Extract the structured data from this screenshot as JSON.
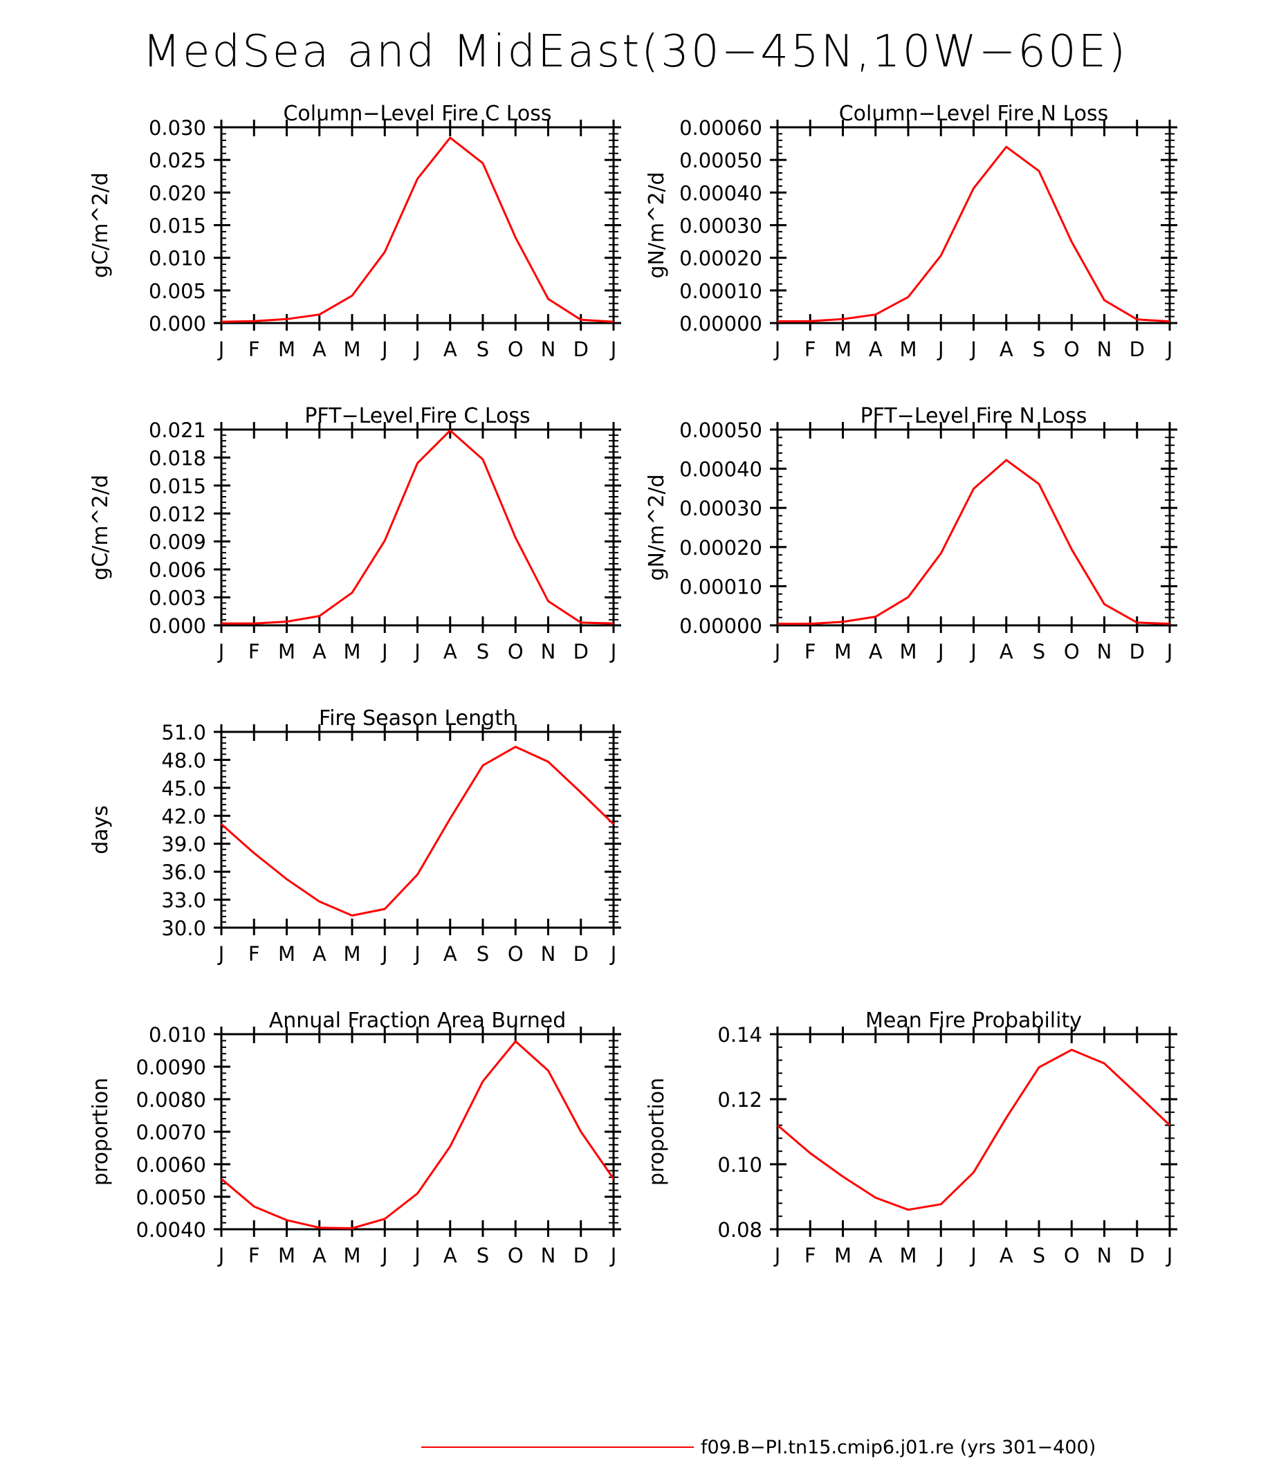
{
  "title": "MedSea and MidEast(30−45N,10W−60E)",
  "month_labels": [
    "J",
    "F",
    "M",
    "A",
    "M",
    "J",
    "J",
    "A",
    "S",
    "O",
    "N",
    "D",
    "J"
  ],
  "line_color": "#ff0000",
  "legend": {
    "label": "f09.B−PI.tn15.cmip6.j01.re (yrs 301−400)"
  },
  "chart_data": [
    {
      "type": "line",
      "title": "Column−Level Fire C Loss",
      "ylabel": "gC/m^2/d",
      "ylim": [
        0,
        0.03
      ],
      "yticks": [
        0.0,
        0.005,
        0.01,
        0.015,
        0.02,
        0.025,
        0.03
      ],
      "ytick_labels": [
        "0.000",
        "0.005",
        "0.010",
        "0.015",
        "0.020",
        "0.025",
        "0.030"
      ],
      "x": [
        "J",
        "F",
        "M",
        "A",
        "M",
        "J",
        "J",
        "A",
        "S",
        "O",
        "N",
        "D",
        "J"
      ],
      "series": [
        {
          "values": [
            0.0002,
            0.0003,
            0.0006,
            0.0013,
            0.0042,
            0.0109,
            0.0221,
            0.0284,
            0.0245,
            0.0131,
            0.0037,
            0.0005,
            0.0002
          ]
        }
      ]
    },
    {
      "type": "line",
      "title": "Column−Level Fire N Loss",
      "ylabel": "gN/m^2/d",
      "ylim": [
        0,
        0.0006
      ],
      "yticks": [
        0.0,
        0.0001,
        0.0002,
        0.0003,
        0.0004,
        0.0005,
        0.0006
      ],
      "ytick_labels": [
        "0.00000",
        "0.00010",
        "0.00020",
        "0.00030",
        "0.00040",
        "0.00050",
        "0.00060"
      ],
      "x": [
        "J",
        "F",
        "M",
        "A",
        "M",
        "J",
        "J",
        "A",
        "S",
        "O",
        "N",
        "D",
        "J"
      ],
      "series": [
        {
          "values": [
            5e-06,
            6e-06,
            1.2e-05,
            2.6e-05,
            8e-05,
            0.000207,
            0.000413,
            0.00054,
            0.000466,
            0.000249,
            7e-05,
            1.1e-05,
            5e-06
          ]
        }
      ]
    },
    {
      "type": "line",
      "title": "PFT−Level Fire C Loss",
      "ylabel": "gC/m^2/d",
      "ylim": [
        0,
        0.021
      ],
      "yticks": [
        0.0,
        0.003,
        0.006,
        0.009,
        0.012,
        0.015,
        0.018,
        0.021
      ],
      "ytick_labels": [
        "0.000",
        "0.003",
        "0.006",
        "0.009",
        "0.012",
        "0.015",
        "0.018",
        "0.021"
      ],
      "x": [
        "J",
        "F",
        "M",
        "A",
        "M",
        "J",
        "J",
        "A",
        "S",
        "O",
        "N",
        "D",
        "J"
      ],
      "series": [
        {
          "values": [
            0.0002,
            0.0002,
            0.0004,
            0.001,
            0.0035,
            0.0091,
            0.0174,
            0.0209,
            0.0178,
            0.0094,
            0.0026,
            0.0003,
            0.0002
          ]
        }
      ]
    },
    {
      "type": "line",
      "title": "PFT−Level Fire N Loss",
      "ylabel": "gN/m^2/d",
      "ylim": [
        0,
        0.0005
      ],
      "yticks": [
        0.0,
        0.0001,
        0.0002,
        0.0003,
        0.0004,
        0.0005
      ],
      "ytick_labels": [
        "0.00000",
        "0.00010",
        "0.00020",
        "0.00030",
        "0.00040",
        "0.00050"
      ],
      "x": [
        "J",
        "F",
        "M",
        "A",
        "M",
        "J",
        "J",
        "A",
        "S",
        "O",
        "N",
        "D",
        "J"
      ],
      "series": [
        {
          "values": [
            4e-06,
            4e-06,
            9e-06,
            2.2e-05,
            7.2e-05,
            0.000184,
            0.000349,
            0.000422,
            0.000361,
            0.000194,
            5.4e-05,
            7e-06,
            4e-06
          ]
        }
      ]
    },
    {
      "type": "line",
      "title": "Fire Season Length",
      "ylabel": "days",
      "ylim": [
        30,
        51
      ],
      "yticks": [
        30,
        33,
        36,
        39,
        42,
        45,
        48,
        51
      ],
      "ytick_labels": [
        "30.0",
        "33.0",
        "36.0",
        "39.0",
        "42.0",
        "45.0",
        "48.0",
        "51.0"
      ],
      "x": [
        "J",
        "F",
        "M",
        "A",
        "M",
        "J",
        "J",
        "A",
        "S",
        "O",
        "N",
        "D",
        "J"
      ],
      "series": [
        {
          "values": [
            41.1,
            38.0,
            35.2,
            32.8,
            31.3,
            32.0,
            35.7,
            41.7,
            47.4,
            49.4,
            47.8,
            44.5,
            41.1
          ]
        }
      ]
    },
    {
      "type": "line",
      "title": "Annual Fraction Area Burned",
      "ylabel": "proportion",
      "ylim": [
        0.004,
        0.01
      ],
      "yticks": [
        0.004,
        0.005,
        0.006,
        0.007,
        0.008,
        0.009,
        0.01
      ],
      "ytick_labels": [
        "0.0040",
        "0.0050",
        "0.0060",
        "0.0070",
        "0.0080",
        "0.0090",
        "0.010"
      ],
      "x": [
        "J",
        "F",
        "M",
        "A",
        "M",
        "J",
        "J",
        "A",
        "S",
        "O",
        "N",
        "D",
        "J"
      ],
      "series": [
        {
          "values": [
            0.00555,
            0.0047,
            0.00428,
            0.00405,
            0.00403,
            0.00432,
            0.0051,
            0.00655,
            0.00855,
            0.00978,
            0.00888,
            0.007,
            0.00555
          ]
        }
      ]
    },
    {
      "type": "line",
      "title": "Mean Fire Probability",
      "ylabel": "proportion",
      "ylim": [
        0.08,
        0.14
      ],
      "yticks": [
        0.08,
        0.1,
        0.12,
        0.14
      ],
      "ytick_labels": [
        "0.08",
        "0.10",
        "0.12",
        "0.14"
      ],
      "x": [
        "J",
        "F",
        "M",
        "A",
        "M",
        "J",
        "J",
        "A",
        "S",
        "O",
        "N",
        "D",
        "J"
      ],
      "series": [
        {
          "values": [
            0.112,
            0.1034,
            0.0962,
            0.0897,
            0.086,
            0.0877,
            0.0975,
            0.1143,
            0.1298,
            0.1352,
            0.131,
            0.1216,
            0.112
          ]
        }
      ]
    }
  ]
}
